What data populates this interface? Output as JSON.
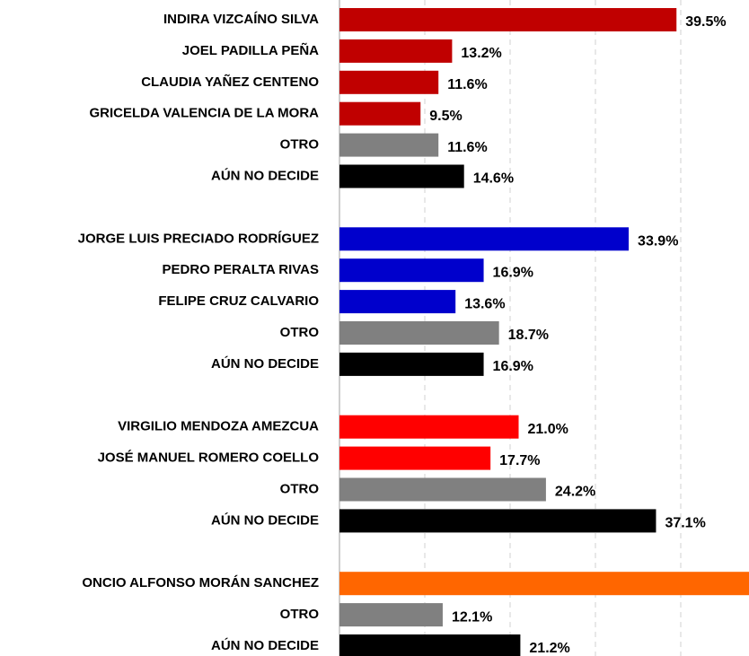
{
  "chart_data": {
    "type": "bar",
    "orientation": "horizontal",
    "xlim": [
      0,
      48
    ],
    "xticks": [
      0,
      10,
      20,
      30,
      40
    ],
    "grid": true,
    "groups": [
      {
        "categories": [
          "INDIRA VIZCAÍNO SILVA",
          "JOEL PADILLA PEÑA",
          "CLAUDIA YAÑEZ CENTENO",
          "GRICELDA VALENCIA DE LA MORA",
          "OTRO",
          "AÚN NO DECIDE"
        ],
        "values": [
          39.5,
          13.2,
          11.6,
          9.5,
          11.6,
          14.6
        ],
        "value_labels": [
          "39.5%",
          "13.2%",
          "11.6%",
          "9.5%",
          "11.6%",
          "14.6%"
        ],
        "colors": [
          "#c00000",
          "#c00000",
          "#c00000",
          "#c00000",
          "#808080",
          "#000000"
        ]
      },
      {
        "categories": [
          "JORGE LUIS PRECIADO RODRÍGUEZ",
          "PEDRO PERALTA RIVAS",
          "FELIPE CRUZ CALVARIO",
          "OTRO",
          "AÚN NO DECIDE"
        ],
        "values": [
          33.9,
          16.9,
          13.6,
          18.7,
          16.9
        ],
        "value_labels": [
          "33.9%",
          "16.9%",
          "13.6%",
          "18.7%",
          "16.9%"
        ],
        "colors": [
          "#0000cc",
          "#0000cc",
          "#0000cc",
          "#808080",
          "#000000"
        ]
      },
      {
        "categories": [
          "VIRGILIO MENDOZA AMEZCUA",
          "JOSÉ MANUEL ROMERO COELLO",
          "OTRO",
          "AÚN NO DECIDE"
        ],
        "values": [
          21.0,
          17.7,
          24.2,
          37.1
        ],
        "value_labels": [
          "21.0%",
          "17.7%",
          "24.2%",
          "37.1%"
        ],
        "colors": [
          "#ff0000",
          "#ff0000",
          "#808080",
          "#000000"
        ]
      },
      {
        "categories": [
          "ONCIO ALFONSO MORÁN SANCHEZ",
          "OTRO",
          "AÚN NO DECIDE"
        ],
        "values": [
          48,
          12.1,
          21.2
        ],
        "value_labels": [
          null,
          "12.1%",
          "21.2%"
        ],
        "colors": [
          "#ff6600",
          "#808080",
          "#000000"
        ]
      }
    ]
  }
}
